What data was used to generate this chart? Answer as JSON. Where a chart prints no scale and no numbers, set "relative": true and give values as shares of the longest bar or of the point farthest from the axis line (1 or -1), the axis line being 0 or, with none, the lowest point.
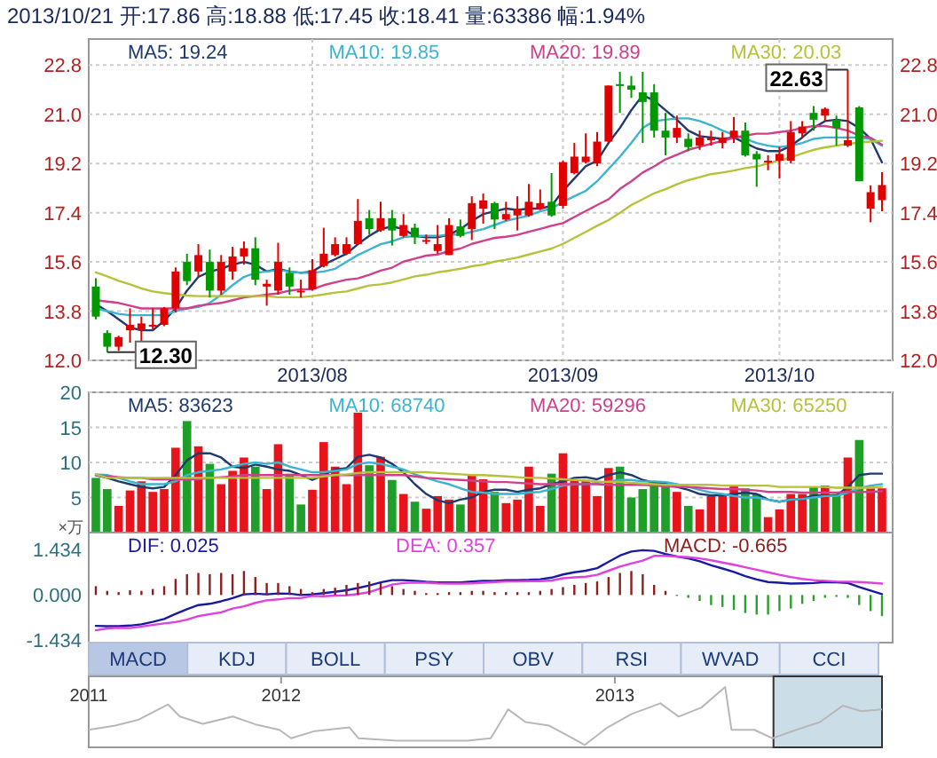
{
  "chart_data": [
    {
      "type": "candlestick",
      "title": "2013/10/21 开:17.86 高:18.88 低:17.45 收:18.41 量:63386 幅:1.94%",
      "categories": [
        null,
        null,
        null,
        null,
        null,
        null,
        null,
        null,
        null,
        null,
        null,
        null,
        null,
        null,
        null,
        null,
        null,
        null,
        null,
        "2013/08",
        null,
        null,
        null,
        null,
        null,
        null,
        null,
        null,
        null,
        null,
        null,
        null,
        null,
        null,
        null,
        null,
        null,
        null,
        null,
        null,
        null,
        "2013/09",
        null,
        null,
        null,
        null,
        null,
        null,
        null,
        null,
        null,
        null,
        null,
        null,
        null,
        null,
        null,
        null,
        null,
        null,
        "2013/10",
        null,
        null,
        null,
        null,
        null,
        null,
        null,
        null,
        null
      ],
      "ohlc": [
        [
          14.7,
          15.0,
          13.5,
          13.6
        ],
        [
          13.0,
          13.1,
          12.3,
          12.5
        ],
        [
          12.5,
          12.9,
          12.35,
          12.85
        ],
        [
          13.1,
          13.9,
          12.65,
          13.3
        ],
        [
          13.1,
          13.6,
          12.65,
          13.35
        ],
        [
          13.25,
          13.9,
          13.1,
          13.3
        ],
        [
          13.3,
          13.95,
          13.25,
          13.9
        ],
        [
          13.9,
          15.4,
          13.75,
          15.25
        ],
        [
          15.6,
          15.9,
          14.75,
          14.9
        ],
        [
          15.25,
          16.25,
          15.05,
          15.85
        ],
        [
          15.6,
          16.05,
          14.3,
          14.55
        ],
        [
          14.55,
          15.85,
          14.4,
          15.6
        ],
        [
          15.25,
          16.15,
          14.95,
          15.8
        ],
        [
          15.8,
          16.35,
          15.5,
          16.1
        ],
        [
          16.1,
          16.5,
          14.75,
          14.95
        ],
        [
          14.7,
          14.95,
          14.0,
          14.8
        ],
        [
          14.55,
          16.3,
          14.4,
          15.6
        ],
        [
          15.2,
          15.4,
          14.4,
          14.7
        ],
        [
          14.55,
          14.95,
          14.3,
          14.55
        ],
        [
          14.6,
          15.7,
          14.55,
          15.3
        ],
        [
          15.45,
          16.85,
          15.4,
          15.9
        ],
        [
          15.85,
          16.5,
          15.8,
          16.25
        ],
        [
          15.9,
          16.5,
          15.85,
          16.25
        ],
        [
          16.25,
          17.9,
          16.25,
          17.1
        ],
        [
          17.2,
          17.5,
          16.6,
          16.8
        ],
        [
          16.75,
          17.8,
          16.7,
          17.2
        ],
        [
          17.2,
          17.5,
          16.2,
          16.75
        ],
        [
          16.55,
          17.35,
          16.5,
          16.95
        ],
        [
          16.85,
          17.0,
          16.25,
          16.5
        ],
        [
          16.35,
          16.6,
          16.25,
          16.4
        ],
        [
          16.0,
          16.95,
          15.9,
          16.25
        ],
        [
          15.85,
          17.2,
          15.85,
          16.95
        ],
        [
          16.9,
          17.15,
          16.5,
          16.55
        ],
        [
          16.8,
          18.0,
          16.4,
          17.75
        ],
        [
          17.55,
          18.1,
          17.0,
          17.85
        ],
        [
          17.75,
          17.8,
          16.8,
          17.15
        ],
        [
          17.15,
          17.8,
          17.1,
          17.35
        ],
        [
          17.3,
          18.0,
          16.75,
          17.55
        ],
        [
          17.3,
          18.45,
          17.25,
          17.8
        ],
        [
          17.55,
          18.25,
          17.5,
          17.75
        ],
        [
          17.8,
          18.85,
          17.25,
          17.3
        ],
        [
          17.65,
          19.3,
          17.55,
          19.25
        ],
        [
          18.85,
          19.95,
          18.8,
          19.45
        ],
        [
          19.25,
          20.3,
          19.2,
          19.45
        ],
        [
          19.2,
          20.35,
          19.1,
          20.0
        ],
        [
          20.0,
          22.05,
          19.95,
          22.05
        ],
        [
          22.1,
          22.55,
          21.05,
          22.05
        ],
        [
          22.05,
          22.4,
          21.6,
          21.9
        ],
        [
          21.8,
          22.55,
          19.95,
          21.45
        ],
        [
          21.8,
          22.1,
          20.15,
          20.4
        ],
        [
          20.4,
          21.05,
          19.5,
          20.15
        ],
        [
          20.15,
          20.95,
          19.95,
          20.5
        ],
        [
          20.1,
          20.3,
          19.65,
          19.8
        ],
        [
          19.85,
          20.4,
          19.7,
          20.15
        ],
        [
          20.05,
          20.4,
          19.85,
          20.15
        ],
        [
          19.95,
          20.35,
          19.75,
          20.15
        ],
        [
          20.15,
          20.9,
          19.95,
          20.4
        ],
        [
          20.4,
          20.7,
          19.45,
          19.5
        ],
        [
          19.55,
          19.65,
          18.35,
          19.35
        ],
        [
          19.25,
          19.5,
          18.95,
          19.3
        ],
        [
          19.3,
          19.8,
          18.65,
          19.55
        ],
        [
          19.3,
          20.75,
          19.2,
          20.35
        ],
        [
          20.3,
          20.75,
          20.15,
          20.55
        ],
        [
          21.05,
          21.3,
          20.4,
          20.8
        ],
        [
          20.95,
          21.25,
          20.75,
          21.2
        ],
        [
          20.8,
          20.95,
          19.85,
          20.5
        ],
        [
          19.85,
          22.63,
          19.8,
          20.05
        ],
        [
          21.25,
          21.3,
          18.55,
          18.55
        ],
        [
          17.55,
          18.4,
          17.05,
          18.15
        ],
        [
          17.86,
          18.88,
          17.45,
          18.41
        ]
      ],
      "series": [
        {
          "type": "line",
          "name": "MA5: 19.24",
          "color": "#1f3a6e",
          "values": [
            14.05,
            13.8,
            13.5,
            13.2,
            13.1,
            13.1,
            13.45,
            13.9,
            14.55,
            15.05,
            15.25,
            15.35,
            15.5,
            15.6,
            15.5,
            15.25,
            15.35,
            15.25,
            15.2,
            15.25,
            15.5,
            15.7,
            15.9,
            16.25,
            16.55,
            16.8,
            16.9,
            16.8,
            16.55,
            16.5,
            16.5,
            16.6,
            16.8,
            17.1,
            17.35,
            17.45,
            17.55,
            17.5,
            17.55,
            17.55,
            17.65,
            18.2,
            18.65,
            19.1,
            19.3,
            19.95,
            20.5,
            21.15,
            21.7,
            21.5,
            21.15,
            20.8,
            20.4,
            20.2,
            20.15,
            20.1,
            20.15,
            19.95,
            19.75,
            19.65,
            19.65,
            19.85,
            20.15,
            20.5,
            20.75,
            20.8,
            20.75,
            20.5,
            20.1,
            19.24
          ]
        },
        {
          "type": "line",
          "name": "MA10: 19.85",
          "color": "#3cb4d0",
          "values": [
            13.9,
            13.8,
            13.7,
            13.65,
            13.65,
            13.65,
            13.65,
            13.8,
            13.9,
            13.95,
            14.1,
            14.4,
            14.75,
            15.05,
            15.2,
            15.25,
            15.3,
            15.25,
            15.2,
            15.2,
            15.25,
            15.35,
            15.6,
            15.85,
            16.05,
            16.25,
            16.35,
            16.5,
            16.55,
            16.55,
            16.55,
            16.6,
            16.6,
            16.7,
            16.8,
            16.95,
            17.1,
            17.2,
            17.3,
            17.45,
            17.55,
            17.8,
            18.0,
            18.2,
            18.55,
            19.0,
            19.45,
            19.95,
            20.5,
            20.75,
            20.8,
            20.85,
            20.85,
            20.75,
            20.6,
            20.4,
            20.25,
            20.1,
            19.95,
            19.85,
            19.8,
            19.85,
            19.95,
            20.1,
            20.15,
            20.15,
            20.15,
            20.15,
            20.1,
            19.85
          ]
        },
        {
          "type": "line",
          "name": "MA20: 19.89",
          "color": "#d0408a",
          "values": [
            14.2,
            14.15,
            14.1,
            14.0,
            13.9,
            13.9,
            13.9,
            13.9,
            13.9,
            14.0,
            14.05,
            14.1,
            14.2,
            14.3,
            14.35,
            14.4,
            14.45,
            14.55,
            14.6,
            14.6,
            14.75,
            14.85,
            14.95,
            15.0,
            15.13,
            15.28,
            15.39,
            15.61,
            15.72,
            15.83,
            15.87,
            16.0,
            16.09,
            16.26,
            16.37,
            16.48,
            16.52,
            16.59,
            16.7,
            16.81,
            16.92,
            17.02,
            17.24,
            17.46,
            17.68,
            17.89,
            18.27,
            18.55,
            18.87,
            19.09,
            19.35,
            19.52,
            19.7,
            19.81,
            19.92,
            20.03,
            20.14,
            20.22,
            20.29,
            20.29,
            20.35,
            20.4,
            20.5,
            20.57,
            20.57,
            20.5,
            20.4,
            20.22,
            20.14,
            19.89
          ]
        },
        {
          "type": "line",
          "name": "MA30: 20.03",
          "color": "#b5c23a",
          "values": [
            15.22,
            15.07,
            14.91,
            14.78,
            14.63,
            14.52,
            14.46,
            14.41,
            14.37,
            14.35,
            14.35,
            14.35,
            14.35,
            14.35,
            14.35,
            14.35,
            14.31,
            14.31,
            14.31,
            14.35,
            14.41,
            14.48,
            14.52,
            14.63,
            14.74,
            14.78,
            14.85,
            14.96,
            15.07,
            15.13,
            15.22,
            15.28,
            15.35,
            15.44,
            15.5,
            15.61,
            15.68,
            15.76,
            15.87,
            15.98,
            16.09,
            16.26,
            16.48,
            16.7,
            16.92,
            17.13,
            17.4,
            17.68,
            17.89,
            18.11,
            18.26,
            18.44,
            18.59,
            18.7,
            18.81,
            18.87,
            18.94,
            19.03,
            19.09,
            19.2,
            19.31,
            19.42,
            19.57,
            19.7,
            19.79,
            19.85,
            19.92,
            19.96,
            20.0,
            20.03
          ]
        }
      ],
      "ylim": [
        12.0,
        23.75
      ],
      "yticks": [
        {
          "value": 12,
          "label": "12.0"
        },
        13.8,
        15.6,
        17.4,
        19.2,
        {
          "value": 21,
          "label": "21.0"
        },
        22.8
      ],
      "y2lim": [
        12.0,
        23.75
      ],
      "y2ticks": [
        {
          "value": 12,
          "label": "12.0"
        },
        13.8,
        15.6,
        17.4,
        19.2,
        {
          "value": 21,
          "label": "21.0"
        },
        22.8
      ],
      "annotations": [
        "22.63",
        "12.30"
      ],
      "grid": true,
      "legend": "top"
    },
    {
      "type": "bar",
      "categories": [
        null,
        null,
        null,
        null,
        null,
        null,
        null,
        null,
        null,
        null,
        null,
        null,
        null,
        null,
        null,
        null,
        null,
        null,
        null,
        null,
        null,
        null,
        null,
        null,
        null,
        null,
        null,
        null,
        null,
        null,
        null,
        null,
        null,
        null,
        null,
        null,
        null,
        null,
        null,
        null,
        null,
        null,
        null,
        null,
        null,
        null,
        null,
        null,
        null,
        null,
        null,
        null,
        null,
        null,
        null,
        null,
        null,
        null,
        null,
        null,
        null,
        null,
        null,
        null,
        null,
        null,
        null,
        null,
        null,
        null
      ],
      "ylabel": "×万",
      "series": [
        {
          "type": "bar",
          "values": [
            7.8,
            6.2,
            3.8,
            6.0,
            7.3,
            5.8,
            6.2,
            12.1,
            15.9,
            12.3,
            9.8,
            6.9,
            8.8,
            10.7,
            9.4,
            6.2,
            12.6,
            8.4,
            4.0,
            6.1,
            12.9,
            9.4,
            6.9,
            17.1,
            9.6,
            10.8,
            7.5,
            5.5,
            4.4,
            3.4,
            5.2,
            4.7,
            4.0,
            8.3,
            7.6,
            5.8,
            4.2,
            4.7,
            9.4,
            3.8,
            8.4,
            11.3,
            7.5,
            7.5,
            5.2,
            9.2,
            9.4,
            5.0,
            6.2,
            7.3,
            6.9,
            5.8,
            3.8,
            3.3,
            5.2,
            5.5,
            6.7,
            6.3,
            5.5,
            2.2,
            3.3,
            5.5,
            5.5,
            6.5,
            6.7,
            5.5,
            10.7,
            13.2,
            6.3,
            6.3
          ],
          "colors": [
            "#1f9f2a",
            "#1f9f2a",
            "#e8141c",
            "#e8141c",
            "#e8141c",
            "#e8141c",
            "#e8141c",
            "#e8141c",
            "#1f9f2a",
            "#e8141c",
            "#1f9f2a",
            "#e8141c",
            "#e8141c",
            "#e8141c",
            "#1f9f2a",
            "#e8141c",
            "#e8141c",
            "#1f9f2a",
            "#1f9f2a",
            "#e8141c",
            "#e8141c",
            "#e8141c",
            "#e8141c",
            "#e8141c",
            "#1f9f2a",
            "#e8141c",
            "#1f9f2a",
            "#e8141c",
            "#1f9f2a",
            "#e8141c",
            "#e8141c",
            "#e8141c",
            "#1f9f2a",
            "#e8141c",
            "#e8141c",
            "#1f9f2a",
            "#e8141c",
            "#e8141c",
            "#e8141c",
            "#e8141c",
            "#1f9f2a",
            "#e8141c",
            "#e8141c",
            "#e8141c",
            "#e8141c",
            "#e8141c",
            "#1f9f2a",
            "#1f9f2a",
            "#1f9f2a",
            "#1f9f2a",
            "#1f9f2a",
            "#e8141c",
            "#1f9f2a",
            "#e8141c",
            "#e8141c",
            "#e8141c",
            "#e8141c",
            "#1f9f2a",
            "#1f9f2a",
            "#e8141c",
            "#e8141c",
            "#e8141c",
            "#e8141c",
            "#1f9f2a",
            "#e8141c",
            "#1f9f2a",
            "#e8141c",
            "#1f9f2a",
            "#e8141c",
            "#e8141c"
          ]
        },
        {
          "type": "line",
          "name": "MA5: 83623",
          "color": "#1f3a6e",
          "values": [
            8.2,
            7.8,
            7.3,
            6.9,
            6.5,
            6.3,
            6.5,
            8.2,
            10.3,
            11.3,
            11.3,
            10.7,
            9.4,
            9.2,
            9.7,
            9.4,
            9.0,
            8.8,
            8.2,
            7.5,
            8.2,
            9.0,
            9.2,
            10.8,
            11.1,
            10.7,
            9.8,
            8.6,
            6.9,
            5.5,
            4.6,
            4.2,
            4.7,
            5.0,
            5.8,
            6.1,
            6.1,
            5.8,
            6.1,
            6.3,
            6.9,
            7.3,
            7.8,
            7.9,
            7.6,
            8.2,
            8.6,
            8.2,
            7.5,
            7.1,
            7.1,
            6.5,
            6.1,
            5.5,
            5.3,
            5.3,
            5.5,
            5.7,
            5.5,
            4.7,
            4.4,
            4.7,
            4.8,
            5.3,
            5.3,
            5.3,
            6.5,
            8.2,
            8.4,
            8.4
          ]
        },
        {
          "type": "line",
          "name": "MA10: 68740",
          "color": "#3cb4d0",
          "values": [
            8.3,
            8.2,
            7.8,
            7.3,
            6.9,
            6.9,
            6.9,
            7.3,
            8.2,
            8.6,
            8.8,
            9.0,
            9.4,
            9.8,
            10.0,
            9.8,
            10.0,
            9.4,
            9.0,
            8.6,
            8.6,
            8.8,
            9.0,
            9.8,
            10.0,
            9.8,
            9.4,
            9.0,
            8.3,
            7.8,
            7.3,
            6.9,
            6.3,
            5.8,
            5.7,
            5.5,
            5.5,
            5.5,
            5.7,
            5.8,
            6.2,
            6.7,
            6.9,
            6.9,
            7.1,
            7.3,
            7.5,
            7.5,
            7.3,
            7.3,
            7.2,
            6.9,
            6.5,
            6.1,
            5.7,
            5.5,
            5.2,
            5.0,
            5.0,
            4.7,
            4.4,
            4.7,
            4.8,
            5.0,
            5.2,
            5.2,
            5.7,
            6.3,
            6.7,
            6.9
          ]
        },
        {
          "type": "line",
          "name": "MA20: 59296",
          "color": "#d0408a",
          "values": [
            8.2,
            8.0,
            7.9,
            7.8,
            7.8,
            7.6,
            7.6,
            7.6,
            7.6,
            7.6,
            7.8,
            7.9,
            8.0,
            8.2,
            8.2,
            8.2,
            8.2,
            8.2,
            8.2,
            8.2,
            8.2,
            8.2,
            8.2,
            8.2,
            8.2,
            8.2,
            8.2,
            8.2,
            8.0,
            7.8,
            7.7,
            7.6,
            7.5,
            7.4,
            7.3,
            7.2,
            7.2,
            7.1,
            7.0,
            6.9,
            6.9,
            6.9,
            6.9,
            6.9,
            6.9,
            6.8,
            6.8,
            6.8,
            6.8,
            6.7,
            6.6,
            6.5,
            6.5,
            6.4,
            6.3,
            6.2,
            6.2,
            6.1,
            6.0,
            5.8,
            5.8,
            5.8,
            5.7,
            5.7,
            5.7,
            5.7,
            5.8,
            5.8,
            5.8,
            5.9
          ]
        },
        {
          "type": "line",
          "name": "MA30: 65250",
          "color": "#b5c23a",
          "values": [
            8.3,
            7.8,
            7.8,
            7.8,
            7.8,
            7.8,
            7.8,
            7.8,
            7.8,
            7.8,
            7.8,
            7.8,
            7.8,
            7.8,
            7.8,
            7.8,
            7.8,
            7.8,
            7.8,
            7.8,
            8.0,
            8.2,
            8.3,
            8.5,
            8.6,
            8.6,
            8.6,
            8.6,
            8.6,
            8.6,
            8.5,
            8.4,
            8.3,
            8.2,
            8.2,
            8.1,
            8.0,
            7.9,
            7.8,
            7.8,
            7.7,
            7.6,
            7.5,
            7.4,
            7.3,
            7.2,
            7.2,
            7.1,
            7.0,
            6.9,
            6.8,
            6.8,
            6.8,
            6.8,
            6.8,
            6.7,
            6.7,
            6.7,
            6.7,
            6.7,
            6.5,
            6.5,
            6.5,
            6.5,
            6.5,
            6.4,
            6.4,
            6.4,
            6.4,
            6.5
          ]
        }
      ],
      "ylim": [
        0,
        20
      ],
      "yticks": [
        5,
        10,
        15,
        20
      ],
      "grid": "y",
      "legend": "top"
    },
    {
      "type": "bar",
      "categories": [
        null,
        null,
        null,
        null,
        null,
        null,
        null,
        null,
        null,
        null,
        null,
        null,
        null,
        null,
        null,
        null,
        null,
        null,
        null,
        null,
        null,
        null,
        null,
        null,
        null,
        null,
        null,
        null,
        null,
        null,
        null,
        null,
        null,
        null,
        null,
        null,
        null,
        null,
        null,
        null,
        null,
        null,
        null,
        null,
        null,
        null,
        null,
        null,
        null,
        null,
        null,
        null,
        null,
        null,
        null,
        null,
        null,
        null,
        null,
        null,
        null,
        null,
        null,
        null,
        null,
        null,
        null,
        null,
        null,
        null
      ],
      "series": [
        {
          "type": "line",
          "name": "DIF: 0.025",
          "color": "#1a1aa0",
          "values": [
            -0.98,
            -0.99,
            -0.99,
            -0.97,
            -0.93,
            -0.85,
            -0.76,
            -0.6,
            -0.45,
            -0.32,
            -0.28,
            -0.2,
            -0.1,
            0.02,
            0.04,
            0.02,
            0.05,
            0.04,
            0.0,
            0.02,
            0.06,
            0.1,
            0.15,
            0.22,
            0.3,
            0.4,
            0.47,
            0.47,
            0.45,
            0.42,
            0.4,
            0.4,
            0.4,
            0.43,
            0.45,
            0.45,
            0.47,
            0.47,
            0.48,
            0.5,
            0.55,
            0.65,
            0.72,
            0.77,
            0.85,
            1.05,
            1.25,
            1.38,
            1.42,
            1.4,
            1.3,
            1.22,
            1.16,
            1.07,
            0.94,
            0.84,
            0.73,
            0.6,
            0.49,
            0.41,
            0.39,
            0.36,
            0.37,
            0.38,
            0.41,
            0.4,
            0.38,
            0.25,
            0.14,
            0.03
          ]
        },
        {
          "type": "line",
          "name": "DEA: 0.357",
          "color": "#e040e0",
          "values": [
            -1.12,
            -1.06,
            -1.04,
            -1.05,
            -1.0,
            -0.95,
            -0.9,
            -0.86,
            -0.78,
            -0.67,
            -0.61,
            -0.55,
            -0.43,
            -0.36,
            -0.25,
            -0.17,
            -0.14,
            -0.1,
            -0.1,
            -0.03,
            -0.04,
            -0.02,
            -0.01,
            0.03,
            0.09,
            0.21,
            0.33,
            0.38,
            0.39,
            0.39,
            0.37,
            0.36,
            0.36,
            0.37,
            0.39,
            0.41,
            0.43,
            0.43,
            0.44,
            0.44,
            0.46,
            0.53,
            0.56,
            0.58,
            0.64,
            0.77,
            0.9,
            1.0,
            1.09,
            1.24,
            1.24,
            1.22,
            1.2,
            1.16,
            1.1,
            1.03,
            0.96,
            0.88,
            0.8,
            0.72,
            0.64,
            0.57,
            0.51,
            0.47,
            0.45,
            0.43,
            0.42,
            0.41,
            0.39,
            0.36
          ]
        },
        {
          "type": "bar",
          "name": "MACD: -0.665",
          "color": "#8b2020",
          "values": [
            0.28,
            0.13,
            0.09,
            0.15,
            0.13,
            0.19,
            0.28,
            0.51,
            0.66,
            0.7,
            0.66,
            0.7,
            0.66,
            0.76,
            0.57,
            0.38,
            0.38,
            0.28,
            0.19,
            0.09,
            0.19,
            0.23,
            0.32,
            0.38,
            0.43,
            0.38,
            0.28,
            0.19,
            0.13,
            0.06,
            0.06,
            0.09,
            0.09,
            0.13,
            0.13,
            0.09,
            0.09,
            0.09,
            0.09,
            0.13,
            0.19,
            0.25,
            0.32,
            0.38,
            0.43,
            0.57,
            0.7,
            0.76,
            0.66,
            0.32,
            0.13,
            0.0,
            -0.09,
            -0.19,
            -0.32,
            -0.38,
            -0.47,
            -0.57,
            -0.62,
            -0.62,
            -0.51,
            -0.43,
            -0.28,
            -0.19,
            -0.09,
            -0.06,
            -0.09,
            -0.32,
            -0.51,
            -0.67
          ],
          "colors": [
            "#8b2020",
            "#8b2020",
            "#8b2020",
            "#8b2020",
            "#8b2020",
            "#8b2020",
            "#8b2020",
            "#8b2020",
            "#8b2020",
            "#8b2020",
            "#8b2020",
            "#8b2020",
            "#8b2020",
            "#8b2020",
            "#8b2020",
            "#8b2020",
            "#8b2020",
            "#8b2020",
            "#8b2020",
            "#8b2020",
            "#8b2020",
            "#8b2020",
            "#8b2020",
            "#8b2020",
            "#8b2020",
            "#8b2020",
            "#8b2020",
            "#8b2020",
            "#8b2020",
            "#8b2020",
            "#8b2020",
            "#8b2020",
            "#8b2020",
            "#8b2020",
            "#8b2020",
            "#8b2020",
            "#8b2020",
            "#8b2020",
            "#8b2020",
            "#8b2020",
            "#8b2020",
            "#8b2020",
            "#8b2020",
            "#8b2020",
            "#8b2020",
            "#8b2020",
            "#8b2020",
            "#8b2020",
            "#8b2020",
            "#8b2020",
            "#8b2020",
            "#8b2020",
            "#2ca02c",
            "#2ca02c",
            "#2ca02c",
            "#2ca02c",
            "#2ca02c",
            "#2ca02c",
            "#2ca02c",
            "#2ca02c",
            "#2ca02c",
            "#2ca02c",
            "#2ca02c",
            "#2ca02c",
            "#2ca02c",
            "#2ca02c",
            "#2ca02c",
            "#2ca02c",
            "#2ca02c",
            "#2ca02c"
          ]
        }
      ],
      "ylim": [
        -1.51,
        1.98
      ],
      "yticks": [
        -1.434,
        {
          "value": 0,
          "label": "0.000"
        },
        1.434
      ],
      "legend": "top"
    },
    {
      "type": "other",
      "annotations": [
        "MACD",
        "KDJ",
        "BOLL",
        "PSY",
        "OBV",
        "RSI",
        "WVAD",
        "CCI"
      ],
      "colors": [
        "#b8c8e4",
        "#e6edf8",
        "#e6edf8",
        "#e6edf8",
        "#e6edf8",
        "#e6edf8",
        "#e6edf8",
        "#e6edf8"
      ]
    },
    {
      "type": "line",
      "relative": true,
      "color": "#b8b8b8",
      "x": [
        "2011-06-04",
        "2011-07-03",
        "2011-07-29",
        "2011-08-30",
        "2011-09-12",
        "2011-10-07",
        "2011-11-09",
        "2011-12-04",
        "2011-12-30",
        "2012-01-12",
        "2012-02-07",
        "2012-03-16",
        "2012-03-26",
        "2012-05-07",
        "2012-06-21",
        "2012-07-23",
        "2012-08-18",
        "2012-09-06",
        "2012-09-25",
        "2012-10-21",
        "2012-11-16",
        "2012-11-29",
        "2012-12-24",
        "2013-01-19",
        "2013-02-20",
        "2013-03-12",
        "2013-04-06",
        "2013-05-02",
        "2013-05-09",
        "2013-06-03",
        "2013-06-23",
        "2013-07-19",
        "2013-08-14",
        "2013-09-08",
        "2013-09-28",
        "2013-10-21"
      ],
      "values": [
        0.29,
        0.36,
        0.46,
        0.71,
        0.51,
        0.39,
        0.51,
        0.38,
        0.29,
        0.15,
        0.27,
        0.33,
        0.15,
        0.11,
        0.11,
        0.11,
        0.15,
        0.63,
        0.42,
        0.36,
        0.15,
        0.04,
        0.33,
        0.55,
        0.73,
        0.51,
        0.66,
        1.0,
        0.29,
        0.29,
        0.15,
        0.29,
        0.42,
        0.69,
        0.6,
        0.63
      ],
      "xlim": [
        "2011-06-04",
        "2013-10-21"
      ],
      "xticks": [
        {
          "value": "2011-06-04",
          "label": "2011"
        },
        {
          "value": "2012-01-01",
          "label": "2012"
        },
        {
          "value": "2013-01-01",
          "label": "2013"
        }
      ],
      "bands": [
        {
          "axis": "x",
          "from": "2013-06-24",
          "to": "2013-10-21",
          "color": "#a9c6d6"
        }
      ]
    }
  ]
}
